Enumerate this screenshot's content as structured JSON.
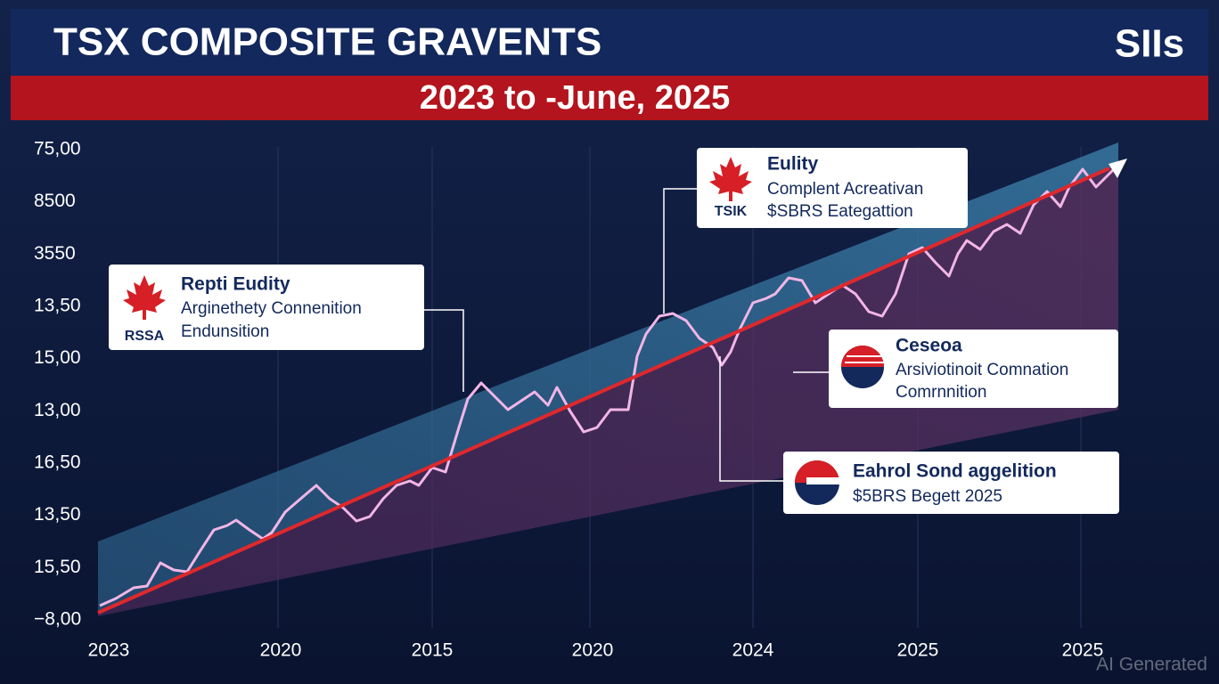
{
  "header": {
    "title": "TSX COMPOSITE GRAVENTS",
    "logo": "SIIs",
    "subtitle": "2023 to -June, 2025"
  },
  "y_axis_labels": [
    "75,00",
    "8500",
    "3550",
    "13,50",
    "15,00",
    "13,00",
    "16,50",
    "13,50",
    "15,50",
    "−8,00"
  ],
  "x_axis_labels": [
    "2023",
    "2020",
    "2015",
    "2020",
    "2024",
    "2025",
    "2025"
  ],
  "callouts": [
    {
      "badge": "RSSA",
      "title": "Repti Eudity",
      "lines": [
        "Arginethety Connenition",
        "Endunsition"
      ]
    },
    {
      "badge": "TSIK",
      "title": "Eulity",
      "lines": [
        "Complent Acreativan",
        "$SBRS Eategattion"
      ]
    },
    {
      "title": "Ceseoa",
      "lines": [
        "Arsiviotinoit Comnation",
        "Comrnnition"
      ]
    },
    {
      "title": "Eahrol Sond aggelition",
      "lines": [
        "$5BRS Begett 2025"
      ]
    }
  ],
  "watermark": "AI Generated"
}
